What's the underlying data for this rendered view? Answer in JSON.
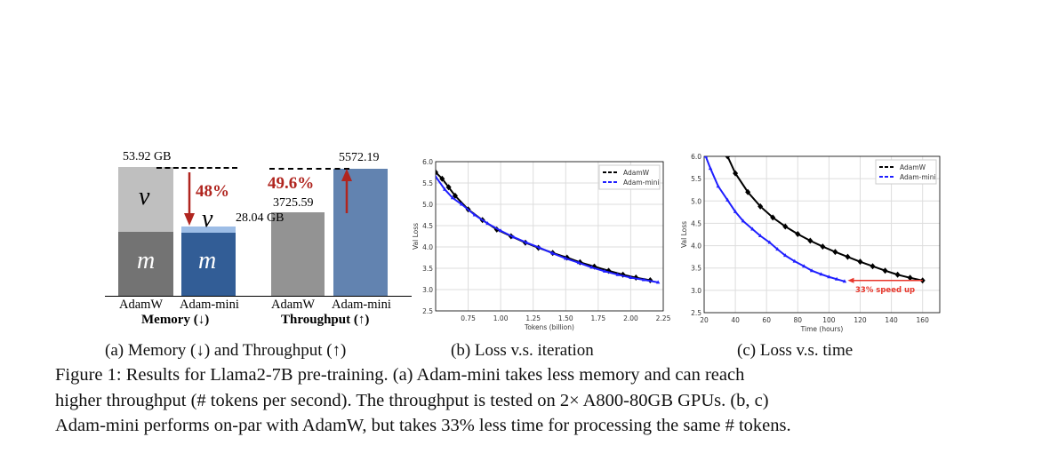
{
  "panel_a": {
    "memory": {
      "adamw_label": "53.92 GB",
      "adammini_label": "28.04 GB",
      "reduction": "48%",
      "m_symbol": "m",
      "v_symbol": "v",
      "adamw_gb": 53.92,
      "adammini_gb": 28.04,
      "group_label": "Memory (↓)"
    },
    "throughput": {
      "adamw_value": "3725.59",
      "adammini_value": "5572.19",
      "increase": "49.6%",
      "group_label": "Throughput (↑)"
    },
    "tick_labels": [
      "AdamW",
      "Adam-mini",
      "AdamW",
      "Adam-mini"
    ],
    "colors": {
      "adamw_m": "#737373",
      "adamw_v": "#bfbfbf",
      "mini_m": "#325d96",
      "mini_v": "#9dbde6",
      "adamw_tp": "#939393",
      "mini_tp": "#6283b0",
      "arrow": "#b0251f"
    }
  },
  "chart_data": [
    {
      "type": "line",
      "xlabel": "Tokens (billion)",
      "ylabel": "Val Loss",
      "xlim": [
        0.5,
        2.25
      ],
      "ylim": [
        2.5,
        6.0
      ],
      "xticks": [
        "0.75",
        "1.00",
        "1.25",
        "1.50",
        "1.75",
        "2.00",
        "2.25"
      ],
      "yticks": [
        "2.5",
        "3.0",
        "3.5",
        "4.0",
        "4.5",
        "5.0",
        "5.5",
        "6.0"
      ],
      "grid": true,
      "legend": "top-right",
      "series": [
        {
          "name": "AdamW",
          "color": "#000000",
          "marker": "diamond",
          "x": [
            0.5,
            0.55,
            0.6,
            0.65,
            0.75,
            0.86,
            0.97,
            1.08,
            1.19,
            1.29,
            1.4,
            1.51,
            1.61,
            1.72,
            1.83,
            1.94,
            2.04,
            2.15
          ],
          "y": [
            5.75,
            5.6,
            5.4,
            5.2,
            4.88,
            4.63,
            4.41,
            4.25,
            4.1,
            3.98,
            3.86,
            3.75,
            3.64,
            3.54,
            3.44,
            3.35,
            3.28,
            3.22
          ]
        },
        {
          "name": "Adam-mini",
          "color": "#1f1fff",
          "marker": "triangle",
          "x": [
            0.5,
            0.57,
            0.63,
            0.7,
            0.8,
            0.9,
            1.0,
            1.1,
            1.2,
            1.3,
            1.4,
            1.5,
            1.6,
            1.7,
            1.8,
            1.9,
            2.0,
            2.1,
            2.21
          ],
          "y": [
            5.65,
            5.35,
            5.15,
            5.0,
            4.75,
            4.55,
            4.38,
            4.23,
            4.1,
            3.98,
            3.85,
            3.73,
            3.63,
            3.52,
            3.43,
            3.35,
            3.28,
            3.23,
            3.17
          ]
        }
      ]
    },
    {
      "type": "line",
      "xlabel": "Time (hours)",
      "ylabel": "Val Loss",
      "xlim": [
        20,
        171
      ],
      "ylim": [
        2.5,
        6.0
      ],
      "xticks": [
        "20",
        "40",
        "60",
        "80",
        "100",
        "120",
        "140",
        "160"
      ],
      "yticks": [
        "2.5",
        "3.0",
        "3.5",
        "4.0",
        "4.5",
        "5.0",
        "5.5",
        "6.0"
      ],
      "grid": true,
      "legend": "top-right",
      "annotation": {
        "text": "33% speed up",
        "color": "#e8372c",
        "from": [
          160,
          3.22
        ],
        "to": [
          112,
          3.2
        ]
      },
      "series": [
        {
          "name": "AdamW",
          "color": "#000000",
          "marker": "diamond",
          "x": [
            35,
            40,
            48,
            56,
            64,
            72,
            80,
            88,
            96,
            104,
            112,
            120,
            128,
            136,
            144,
            152,
            160
          ],
          "y": [
            6.0,
            5.62,
            5.2,
            4.88,
            4.63,
            4.43,
            4.26,
            4.11,
            3.98,
            3.86,
            3.75,
            3.64,
            3.54,
            3.44,
            3.35,
            3.28,
            3.22
          ]
        },
        {
          "name": "Adam-mini",
          "color": "#1f1fff",
          "marker": "triangle",
          "x": [
            21,
            24,
            29,
            35,
            40,
            45,
            51,
            56,
            62,
            67,
            72,
            78,
            84,
            89,
            95,
            100,
            105,
            110
          ],
          "y": [
            6.0,
            5.73,
            5.33,
            5.02,
            4.76,
            4.55,
            4.37,
            4.22,
            4.07,
            3.92,
            3.78,
            3.65,
            3.54,
            3.44,
            3.36,
            3.3,
            3.25,
            3.2
          ]
        }
      ]
    }
  ],
  "subcaptions": {
    "a": "(a) Memory (↓) and Throughput (↑)",
    "b": "(b) Loss v.s. iteration",
    "c": "(c) Loss v.s. time"
  },
  "caption": {
    "line1": "Figure 1: Results for Llama2-7B pre-training. (a) Adam-mini takes less memory and can reach",
    "line2": "higher throughput (# tokens per second). The throughput is tested on 2× A800-80GB GPUs. (b, c)",
    "line3": "Adam-mini performs on-par with AdamW, but takes 33% less time for processing the same # tokens."
  }
}
